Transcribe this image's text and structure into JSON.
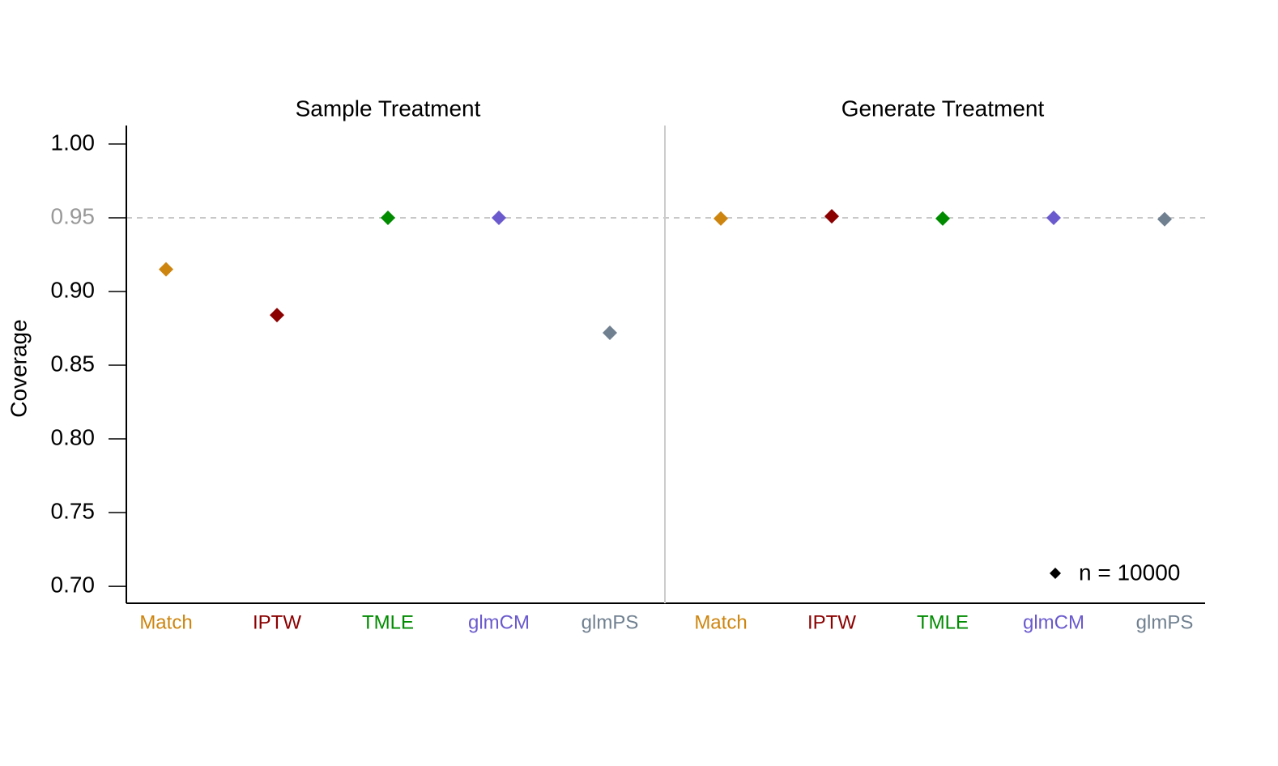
{
  "chart_data": {
    "type": "dot",
    "y_label": "Coverage",
    "ylim": [
      0.6885,
      1.0126
    ],
    "yticks": [
      {
        "value": 0.7,
        "label": "0.70"
      },
      0.75,
      {
        "value": 0.8,
        "label": "0.80"
      },
      0.85,
      {
        "value": 0.9,
        "label": "0.90"
      },
      0.95,
      {
        "value": 1.0,
        "label": "1.00"
      }
    ],
    "reference_line": 0.95,
    "categories": [
      "Match",
      "IPTW",
      "TMLE",
      "glmCM",
      "glmPS"
    ],
    "colors": [
      "#cd850f",
      "#8b0000",
      "#008b00",
      "#6a5acd",
      "#708090"
    ],
    "panels": [
      {
        "title": "Sample Treatment",
        "values": [
          0.915,
          0.884,
          0.95,
          0.95,
          0.872
        ]
      },
      {
        "title": "Generate Treatment",
        "values": [
          0.9495,
          0.951,
          0.9495,
          0.95,
          0.949
        ]
      }
    ],
    "legend": {
      "name": "n = 10000",
      "color": "#000000",
      "position": "lower right"
    }
  }
}
